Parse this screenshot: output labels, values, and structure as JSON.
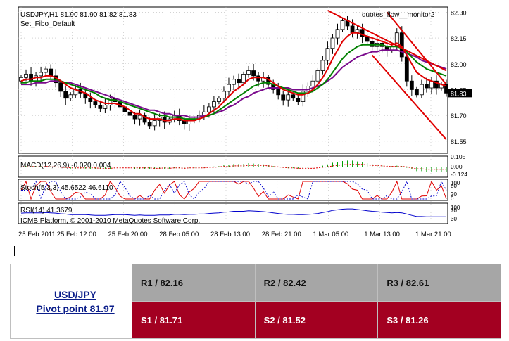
{
  "chart_data": {
    "type": "candlestick",
    "symbol_header": "USDJPY,H1  81.90 81.90 81.82 81.83",
    "indicator_name": "Set_Fibo_Default",
    "watermark": "quotes_flow__monitor2",
    "current_price": "81.83",
    "y_ticks": [
      "82.30",
      "82.15",
      "82.00",
      "81.85",
      "81.70",
      "81.55"
    ],
    "ylim": [
      81.48,
      82.33
    ],
    "x_ticks": [
      "25 Feb 2011",
      "25 Feb 12:00",
      "25 Feb 20:00",
      "28 Feb 05:00",
      "28 Feb 13:00",
      "28 Feb 21:00",
      "1 Mar 05:00",
      "1 Mar 13:00",
      "1 Mar 21:00"
    ],
    "closes": [
      81.92,
      81.94,
      81.9,
      81.93,
      81.95,
      81.97,
      81.93,
      81.89,
      81.84,
      81.8,
      81.82,
      81.85,
      81.83,
      81.8,
      81.78,
      81.76,
      81.74,
      81.76,
      81.8,
      81.78,
      81.75,
      81.72,
      81.7,
      81.68,
      81.7,
      81.66,
      81.64,
      81.67,
      81.69,
      81.66,
      81.68,
      81.7,
      81.67,
      81.65,
      81.67,
      81.68,
      81.7,
      81.72,
      81.75,
      81.78,
      81.8,
      81.84,
      81.88,
      81.91,
      81.89,
      81.94,
      81.96,
      81.93,
      81.9,
      81.92,
      81.88,
      81.85,
      81.82,
      81.79,
      81.82,
      81.8,
      81.78,
      81.84,
      81.87,
      81.9,
      81.96,
      82.02,
      82.09,
      82.15,
      82.2,
      82.25,
      82.22,
      82.18,
      82.2,
      82.16,
      82.13,
      82.1,
      82.12,
      82.1,
      82.08,
      82.1,
      82.18,
      82.04,
      81.9,
      81.85,
      81.82,
      81.88,
      81.86,
      81.9,
      81.86,
      81.88,
      81.83
    ],
    "ma_fast": [
      81.9,
      81.91,
      81.91,
      81.92,
      81.92,
      81.93,
      81.93,
      81.92,
      81.9,
      81.88,
      81.86,
      81.85,
      81.84,
      81.83,
      81.81,
      81.79,
      81.78,
      81.77,
      81.77,
      81.77,
      81.76,
      81.75,
      81.73,
      81.71,
      81.71,
      81.69,
      81.68,
      81.68,
      81.68,
      81.67,
      81.67,
      81.68,
      81.68,
      81.67,
      81.67,
      81.67,
      81.68,
      81.69,
      81.71,
      81.73,
      81.75,
      81.78,
      81.81,
      81.84,
      81.86,
      81.88,
      81.91,
      81.92,
      81.92,
      81.92,
      81.91,
      81.89,
      81.87,
      81.85,
      81.84,
      81.83,
      81.82,
      81.82,
      81.83,
      81.85,
      81.88,
      81.92,
      81.97,
      82.03,
      82.08,
      82.13,
      82.16,
      82.18,
      82.18,
      82.17,
      82.16,
      82.15,
      82.14,
      82.13,
      82.12,
      82.11,
      82.12,
      82.1,
      82.05,
      82.0,
      81.95,
      81.93,
      81.91,
      81.9,
      81.89,
      81.88,
      81.87
    ],
    "ma_mid": [
      81.89,
      81.89,
      81.9,
      81.9,
      81.9,
      81.91,
      81.91,
      81.91,
      81.9,
      81.89,
      81.88,
      81.87,
      81.86,
      81.85,
      81.84,
      81.83,
      81.81,
      81.8,
      81.79,
      81.79,
      81.78,
      81.77,
      81.76,
      81.75,
      81.74,
      81.73,
      81.72,
      81.71,
      81.7,
      81.7,
      81.69,
      81.69,
      81.69,
      81.68,
      81.68,
      81.68,
      81.68,
      81.69,
      81.7,
      81.71,
      81.73,
      81.75,
      81.77,
      81.79,
      81.81,
      81.83,
      81.85,
      81.87,
      81.88,
      81.89,
      81.89,
      81.88,
      81.87,
      81.86,
      81.85,
      81.84,
      81.83,
      81.83,
      81.83,
      81.84,
      81.86,
      81.88,
      81.91,
      81.95,
      81.99,
      82.03,
      82.06,
      82.08,
      82.1,
      82.11,
      82.11,
      82.11,
      82.11,
      82.11,
      82.1,
      82.1,
      82.1,
      82.09,
      82.07,
      82.04,
      82.01,
      81.99,
      81.97,
      81.96,
      81.95,
      81.94,
      81.93
    ],
    "ma_slow": [
      81.88,
      81.88,
      81.88,
      81.89,
      81.89,
      81.89,
      81.9,
      81.9,
      81.9,
      81.89,
      81.89,
      81.88,
      81.87,
      81.86,
      81.85,
      81.84,
      81.83,
      81.82,
      81.81,
      81.8,
      81.79,
      81.78,
      81.77,
      81.76,
      81.75,
      81.74,
      81.73,
      81.73,
      81.72,
      81.71,
      81.71,
      81.7,
      81.7,
      81.7,
      81.69,
      81.69,
      81.69,
      81.7,
      81.7,
      81.71,
      81.72,
      81.73,
      81.75,
      81.76,
      81.78,
      81.8,
      81.81,
      81.83,
      81.84,
      81.85,
      81.86,
      81.86,
      81.86,
      81.86,
      81.86,
      81.85,
      81.85,
      81.85,
      81.85,
      81.86,
      81.87,
      81.88,
      81.9,
      81.92,
      81.95,
      81.98,
      82.0,
      82.02,
      82.04,
      82.05,
      82.06,
      82.07,
      82.07,
      82.08,
      82.08,
      82.08,
      82.08,
      82.07,
      82.06,
      82.05,
      82.04,
      82.02,
      82.01,
      82.0,
      81.99,
      81.98,
      81.97
    ],
    "trend_lines": [
      {
        "from": [
          62,
          82.31
        ],
        "to": [
          86,
          81.96
        ]
      },
      {
        "from": [
          74,
          82.3
        ],
        "to": [
          86,
          81.88
        ]
      },
      {
        "from": [
          71,
          82.05
        ],
        "to": [
          86,
          81.56
        ]
      }
    ],
    "macd": {
      "label": "MACD(12,26,9) -0.020 0.004",
      "ticks": [
        "0.105",
        "0.00",
        "-0.124"
      ]
    },
    "stoch": {
      "label": "Stoch(5,3,3) 45.6522 46.6110",
      "ticks": [
        "100",
        "80",
        "20",
        "0"
      ]
    },
    "rsi": {
      "label": "RSI(14) 41.3679",
      "ticks": [
        "100",
        "70",
        "30"
      ]
    },
    "copyright": "ICMB Platform, © 2001-2010 MetaQuotes Software Corp.",
    "colors": {
      "background": "#ffffff",
      "grid": "#b9b9b9",
      "candle": "#000000",
      "ma_fast": "#e00000",
      "ma_mid": "#008000",
      "ma_slow": "#7a0a8c",
      "trend": "#e00000",
      "macd_hist": "#00a000",
      "signal": "#e00000",
      "stoch_main": "#e00000",
      "stoch_signal": "#0000cc",
      "rsi": "#0000cc",
      "price_box": "#000000"
    }
  },
  "pivot_table": {
    "pair": "USD/JPY",
    "pivot": "Pivot point 81.97",
    "r1": "R1 / 82.16",
    "r2": "R2 / 82.42",
    "r3": "R3 / 82.61",
    "s1": "S1 / 81.71",
    "s2": "S2 / 81.52",
    "s3": "S3 / 81.26",
    "colors": {
      "resistance_bg": "#a6a6a6",
      "support_bg": "#a30021",
      "pair_text": "#0b1e8a"
    }
  }
}
